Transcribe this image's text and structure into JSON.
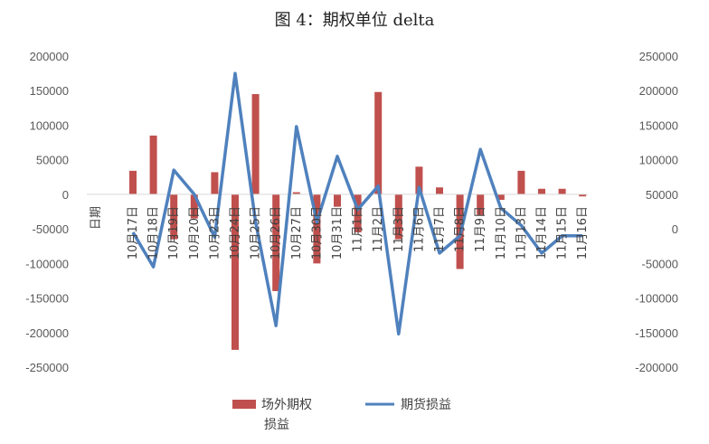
{
  "chart_data": {
    "type": "bar",
    "title": "图 4：期权单位 delta",
    "xlabel": "日期",
    "categories": [
      "10月17日",
      "10月18日",
      "10月19日",
      "10月20日",
      "10月23日",
      "10月24日",
      "10月25日",
      "10月26日",
      "10月27日",
      "10月30日",
      "10月31日",
      "11月1日",
      "11月2日",
      "11月3日",
      "11月6日",
      "11月7日",
      "11月8日",
      "11月9日",
      "11月10日",
      "11月13日",
      "11月14日",
      "11月15日",
      "11月16日"
    ],
    "series": [
      {
        "name": "场外期权损益",
        "type": "bar",
        "axis": "left",
        "color": "#C0504D",
        "values": [
          34000,
          85000,
          -65000,
          -35000,
          32000,
          -225000,
          145000,
          -140000,
          3000,
          -100000,
          -18000,
          -55000,
          148000,
          -65000,
          40000,
          10000,
          -108000,
          -30000,
          -8000,
          34000,
          8000,
          8000,
          -3000
        ]
      },
      {
        "name": "期货损益",
        "type": "line",
        "axis": "right",
        "color": "#4F81BD",
        "values": [
          -5000,
          -55000,
          85000,
          50000,
          -12000,
          225000,
          10000,
          -140000,
          148000,
          10000,
          105000,
          28000,
          62000,
          -152000,
          60000,
          -35000,
          -10000,
          115000,
          30000,
          5000,
          -35000,
          -10000,
          -10000
        ]
      }
    ],
    "y_left": {
      "ylim": [
        -250000,
        200000
      ],
      "ticks": [
        200000,
        150000,
        100000,
        50000,
        0,
        -50000,
        -100000,
        -150000,
        -200000,
        -250000
      ]
    },
    "y_right": {
      "ylim": [
        -200000,
        250000
      ],
      "ticks": [
        250000,
        200000,
        150000,
        100000,
        50000,
        0,
        -50000,
        -100000,
        -150000,
        -200000
      ]
    },
    "grid": false,
    "legend": "bottom"
  }
}
